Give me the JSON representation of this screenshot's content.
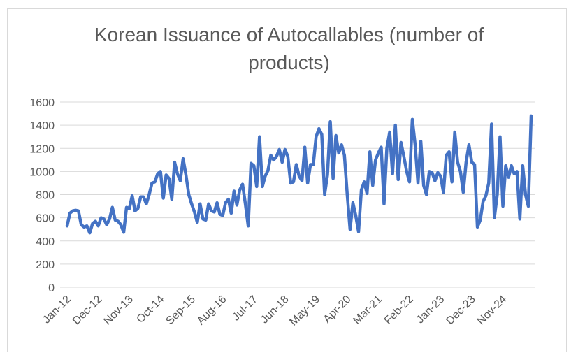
{
  "chart_data": {
    "type": "line",
    "title_line1": "Korean Issuance of Autocallables (number of",
    "title_line2": "products)",
    "xlabel": "",
    "ylabel": "",
    "ylim": [
      0,
      1600
    ],
    "yticks": [
      0,
      200,
      400,
      600,
      800,
      1000,
      1200,
      1400,
      1600
    ],
    "grid": "horizontal",
    "legend": "none",
    "series_color": "#4472c4",
    "grid_color": "#d9d9d9",
    "text_color": "#595959",
    "x_ticks": [
      {
        "index": 0,
        "label": "Jan-12"
      },
      {
        "index": 11,
        "label": "Dec-12"
      },
      {
        "index": 22,
        "label": "Nov-13"
      },
      {
        "index": 33,
        "label": "Oct-14"
      },
      {
        "index": 44,
        "label": "Sep-15"
      },
      {
        "index": 55,
        "label": "Aug-16"
      },
      {
        "index": 66,
        "label": "Jul-17"
      },
      {
        "index": 77,
        "label": "Jun-18"
      },
      {
        "index": 88,
        "label": "May-19"
      },
      {
        "index": 99,
        "label": "Apr-20"
      },
      {
        "index": 110,
        "label": "Mar-21"
      },
      {
        "index": 121,
        "label": "Feb-22"
      },
      {
        "index": 132,
        "label": "Jan-23"
      },
      {
        "index": 143,
        "label": "Dec-23"
      },
      {
        "index": 154,
        "label": "Nov-24"
      }
    ],
    "series": [
      {
        "name": "Korean Issuance of Autocallables",
        "values": [
          530,
          640,
          660,
          665,
          660,
          540,
          520,
          530,
          470,
          550,
          570,
          530,
          600,
          590,
          540,
          590,
          690,
          580,
          570,
          540,
          475,
          690,
          680,
          790,
          660,
          680,
          780,
          780,
          720,
          800,
          900,
          910,
          980,
          1000,
          770,
          970,
          940,
          760,
          1080,
          980,
          920,
          1110,
          970,
          800,
          720,
          650,
          560,
          720,
          590,
          580,
          720,
          660,
          650,
          730,
          630,
          620,
          730,
          760,
          640,
          830,
          710,
          840,
          890,
          720,
          530,
          1070,
          1050,
          870,
          1300,
          870,
          960,
          1010,
          1140,
          1100,
          1130,
          1190,
          1080,
          1190,
          1130,
          900,
          910,
          1060,
          960,
          920,
          1210,
          900,
          1060,
          1060,
          1300,
          1370,
          1320,
          800,
          970,
          1430,
          940,
          1310,
          1160,
          1230,
          1140,
          800,
          500,
          730,
          620,
          480,
          840,
          910,
          810,
          1170,
          880,
          1100,
          1160,
          1210,
          720,
          1200,
          1340,
          980,
          1400,
          930,
          1250,
          1130,
          1000,
          910,
          1450,
          1230,
          900,
          1260,
          880,
          800,
          1000,
          990,
          920,
          990,
          960,
          820,
          1140,
          1170,
          910,
          1340,
          1080,
          1000,
          820,
          1080,
          1230,
          1080,
          1060,
          520,
          580,
          740,
          790,
          900,
          1410,
          600,
          800,
          1300,
          700,
          1050,
          950,
          1050,
          980,
          1000,
          590,
          1050,
          800,
          700,
          1480
        ]
      }
    ]
  }
}
